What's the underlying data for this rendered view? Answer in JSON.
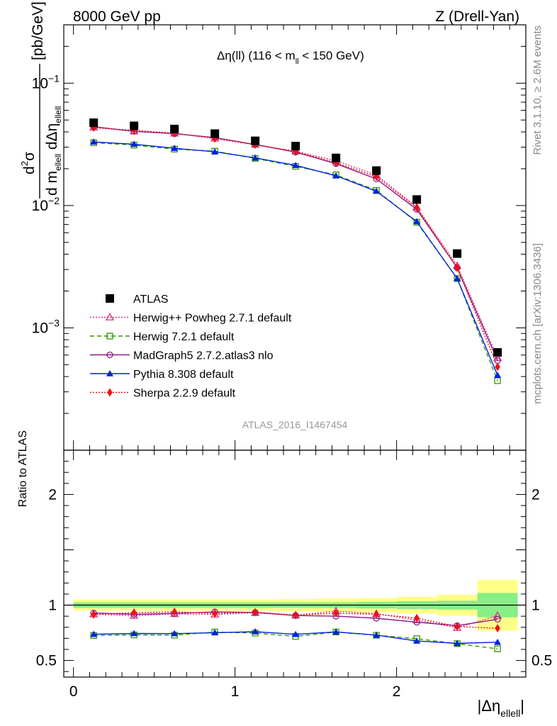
{
  "header": {
    "left": "8000 GeV pp",
    "right": "Z (Drell-Yan)"
  },
  "side_labels": {
    "rivet": "Rivet 3.1.10, ≥ 2.6M events",
    "mcplots": "mcplots.cern.ch [arXiv:1306.3436]"
  },
  "chart_data": {
    "type": "scatter",
    "title": "Δη(ll) (116 < m_ll < 150 GeV)",
    "title_parts": {
      "lead": "Δη(ll) (116 < m",
      "sub": "ll",
      "tail": " < 150 GeV)"
    },
    "analysis_label": "ATLAS_2016_I1467454",
    "xlabel": {
      "lead": "|Δη",
      "sub": "ellell",
      "tail": "|"
    },
    "ylabel": {
      "num": "d²σ",
      "den_lead": "d m",
      "den_sub1": "ellell",
      "den_mid": " dΔη",
      "den_sub2": "ellell",
      "unit": "[pb/GeV]"
    },
    "ratio_ylabel": "Ratio to ATLAS",
    "x_ticks": [
      "0",
      "1",
      "2"
    ],
    "y_ticks_main": [
      {
        "base": "10",
        "exp": "−1",
        "value": 0.1
      },
      {
        "base": "10",
        "exp": "−2",
        "value": 0.01
      },
      {
        "base": "10",
        "exp": "−3",
        "value": 0.001
      }
    ],
    "y_ticks_ratio": [
      "0.5",
      "1",
      "2"
    ],
    "xlim": [
      -0.06,
      2.8
    ],
    "ylim_main": [
      0.0001,
      0.3
    ],
    "ylim_ratio": [
      0.35,
      2.4
    ],
    "x": [
      0.125,
      0.375,
      0.625,
      0.875,
      1.125,
      1.375,
      1.625,
      1.875,
      2.125,
      2.375,
      2.625
    ],
    "x_bin_edges": [
      0,
      0.25,
      0.5,
      0.75,
      1.0,
      1.25,
      1.5,
      1.75,
      2.0,
      2.25,
      2.5,
      2.75
    ],
    "legend_position": "lower-left",
    "series": [
      {
        "name": "ATLAS",
        "color": "#000000",
        "marker": "square-filled",
        "line": "none",
        "values": [
          0.0475,
          0.0448,
          0.0422,
          0.0387,
          0.0338,
          0.0306,
          0.0245,
          0.0193,
          0.0112,
          0.00405,
          0.00063
        ],
        "ratio": [
          1,
          1,
          1,
          1,
          1,
          1,
          1,
          1,
          1,
          1,
          1
        ]
      },
      {
        "name": "Herwig++ Powheg 2.7.1 default",
        "color": "#e0307a",
        "marker": "triangle-open",
        "line": "dotted",
        "values": [
          0.0436,
          0.0405,
          0.0389,
          0.0354,
          0.0315,
          0.0278,
          0.0232,
          0.0178,
          0.0097,
          0.00322,
          0.00057
        ],
        "ratio": [
          0.918,
          0.905,
          0.921,
          0.916,
          0.931,
          0.908,
          0.947,
          0.923,
          0.866,
          0.795,
          0.905
        ]
      },
      {
        "name": "Herwig 7.2.1 default",
        "color": "#339900",
        "marker": "square-open",
        "line": "dashed",
        "values": [
          0.0326,
          0.0312,
          0.0289,
          0.0278,
          0.0243,
          0.0209,
          0.0178,
          0.0133,
          0.0073,
          0.00253,
          0.00037
        ],
        "ratio": [
          0.726,
          0.731,
          0.729,
          0.757,
          0.748,
          0.718,
          0.757,
          0.728,
          0.697,
          0.652,
          0.605
        ]
      },
      {
        "name": "MadGraph5 2.7.2.atlas3 nlo",
        "color": "#8a1a8a",
        "marker": "circle-open",
        "line": "solid",
        "values": [
          0.0441,
          0.0404,
          0.0387,
          0.0359,
          0.0315,
          0.0273,
          0.022,
          0.0165,
          0.0093,
          0.0031,
          0.00054
        ],
        "ratio": [
          0.929,
          0.917,
          0.925,
          0.939,
          0.934,
          0.906,
          0.9,
          0.882,
          0.846,
          0.815,
          0.873
        ]
      },
      {
        "name": "Pythia 8.308 default",
        "color": "#0022dd",
        "marker": "triangle-filled",
        "line": "solid",
        "values": [
          0.0331,
          0.0317,
          0.0294,
          0.0275,
          0.0245,
          0.0213,
          0.0175,
          0.0131,
          0.00739,
          0.00253,
          0.00041
        ],
        "ratio": [
          0.737,
          0.744,
          0.743,
          0.751,
          0.76,
          0.736,
          0.758,
          0.729,
          0.676,
          0.654,
          0.665
        ]
      },
      {
        "name": "Sherpa 2.2.9 default",
        "color": "#ee1111",
        "marker": "diamond-filled",
        "line": "dotted",
        "values": [
          0.0433,
          0.0412,
          0.039,
          0.0353,
          0.0314,
          0.0276,
          0.0223,
          0.0172,
          0.0096,
          0.0031,
          0.00048
        ],
        "ratio": [
          0.915,
          0.933,
          0.939,
          0.925,
          0.936,
          0.91,
          0.927,
          0.918,
          0.883,
          0.807,
          0.791
        ]
      }
    ],
    "ratio_bands": {
      "inner_color": "#88ee88",
      "outer_color": "#ffff88",
      "inner_halfwidth": [
        0.025,
        0.025,
        0.025,
        0.025,
        0.025,
        0.025,
        0.025,
        0.03,
        0.035,
        0.04,
        0.11
      ],
      "outer_halfwidth": [
        0.05,
        0.05,
        0.05,
        0.05,
        0.05,
        0.055,
        0.06,
        0.065,
        0.075,
        0.095,
        0.23
      ]
    }
  }
}
